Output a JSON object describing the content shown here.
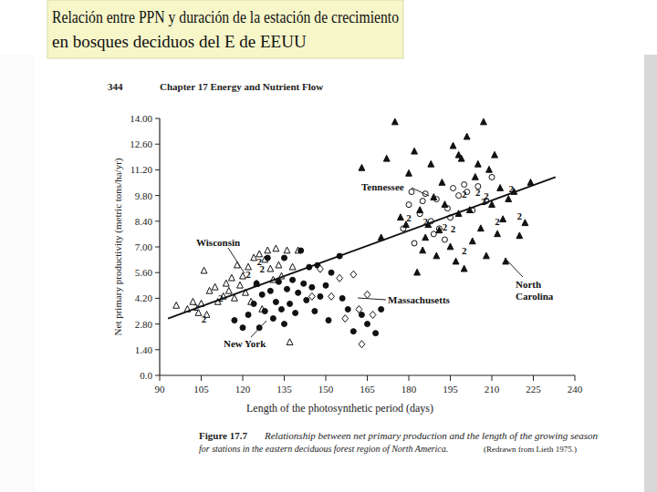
{
  "chart_data": {
    "type": "scatter",
    "title": "Relación entre PPN y duración de la estación de crecimiento",
    "subtitle": "en bosques deciduos del E de EEUU",
    "page_number": "344",
    "page_header": "Chapter 17  Energy and Nutrient Flow",
    "x_label": "Length of the photosynthetic period (days)",
    "y_label": "Net primary productivity (metric tons/ha/yr)",
    "caption_label": "Figure 17.7",
    "caption_lines": [
      "Relationship between net primary production and the length of the growing season",
      "for stations in the eastern deciduous forest region of North America.",
      "(Redrawn from Lieth 1975.)"
    ],
    "xlim": [
      90,
      240
    ],
    "xticks": [
      90,
      105,
      120,
      135,
      150,
      165,
      180,
      195,
      210,
      225,
      240
    ],
    "ylim": [
      0,
      14
    ],
    "yticks": [
      {
        "value": 0,
        "label": "0.0"
      },
      {
        "value": 1.4,
        "label": "1.40"
      },
      {
        "value": 2.8,
        "label": "2.80"
      },
      {
        "value": 4.2,
        "label": "4.20"
      },
      {
        "value": 5.6,
        "label": "5.60"
      },
      {
        "value": 7,
        "label": "7.00"
      },
      {
        "value": 8.4,
        "label": "8.40"
      },
      {
        "value": 9.8,
        "label": "9.80"
      },
      {
        "value": 11.2,
        "label": "11.20"
      },
      {
        "value": 12.6,
        "label": "12.60"
      },
      {
        "value": 14,
        "label": "14.00"
      }
    ],
    "grid": false,
    "series": [
      {
        "name": "Wisconsin",
        "color": "#111111",
        "marker": "triangle-open",
        "x": [
          96,
          100,
          102,
          104,
          105,
          106,
          107,
          108,
          110,
          111,
          113,
          114,
          115,
          116,
          117,
          118,
          119,
          120,
          121,
          122,
          123,
          124,
          125,
          126,
          128,
          129,
          130,
          131,
          132,
          133,
          134,
          136,
          138,
          140,
          137,
          127
        ],
        "values": [
          3.8,
          3.6,
          4.0,
          3.4,
          3.9,
          5.7,
          3.3,
          4.6,
          4.8,
          4.0,
          4.3,
          5.0,
          4.6,
          5.3,
          4.2,
          6.0,
          4.9,
          5.4,
          4.5,
          5.9,
          4.0,
          6.4,
          5.0,
          6.6,
          6.3,
          6.8,
          5.8,
          5.2,
          6.9,
          6.0,
          5.4,
          6.8,
          5.9,
          6.8,
          1.8,
          3.6
        ]
      },
      {
        "name": "New York",
        "color": "#111111",
        "marker": "circle",
        "x": [
          117,
          120,
          122,
          124,
          126,
          127,
          128,
          130,
          131,
          132,
          133,
          134,
          135,
          136,
          137,
          138,
          139,
          140,
          141,
          142,
          143,
          144,
          145,
          146,
          147,
          148,
          150,
          151,
          152,
          155,
          156,
          158,
          160,
          163,
          165,
          168,
          170,
          129,
          135,
          125
        ],
        "values": [
          3.0,
          2.6,
          3.3,
          3.9,
          2.6,
          4.4,
          3.5,
          4.6,
          3.1,
          4.0,
          5.1,
          3.6,
          2.8,
          4.7,
          3.9,
          5.2,
          3.4,
          4.5,
          6.8,
          5.0,
          4.1,
          5.9,
          4.8,
          3.5,
          6.0,
          4.3,
          4.9,
          3.0,
          5.6,
          6.5,
          4.2,
          3.6,
          2.4,
          3.3,
          2.8,
          2.3,
          3.6,
          6.4,
          6.4,
          5.0
        ]
      },
      {
        "name": "Massachusetts",
        "color": "#111111",
        "marker": "diamond-open",
        "x": [
          148,
          152,
          155,
          157,
          160,
          162,
          163,
          165,
          167,
          145
        ],
        "values": [
          5.8,
          4.3,
          5.3,
          3.1,
          5.5,
          3.6,
          1.7,
          4.4,
          3.3,
          4.3
        ]
      },
      {
        "name": "Tennessee",
        "color": "#111111",
        "marker": "circle-open",
        "x": [
          178,
          180,
          181,
          182,
          184,
          185,
          188,
          189,
          190,
          191,
          193,
          195,
          196,
          198,
          200,
          201,
          203,
          205,
          208,
          210,
          186,
          194
        ],
        "values": [
          8.0,
          9.3,
          10.0,
          7.2,
          8.8,
          9.5,
          8.4,
          7.7,
          9.6,
          8.0,
          7.4,
          8.6,
          10.2,
          9.8,
          10.4,
          10.0,
          9.0,
          10.3,
          9.5,
          10.8,
          9.9,
          9.1
        ]
      },
      {
        "name": "North Carolina",
        "color": "#111111",
        "marker": "triangle",
        "x": [
          163,
          170,
          172,
          175,
          177,
          179,
          180,
          182,
          184,
          185,
          186,
          187,
          188,
          189,
          190,
          191,
          192,
          193,
          195,
          196,
          197,
          198,
          199,
          200,
          201,
          202,
          203,
          204,
          205,
          206,
          207,
          208,
          209,
          210,
          211,
          212,
          213,
          214,
          215,
          216,
          218,
          220,
          222,
          224,
          183,
          198
        ],
        "values": [
          11.3,
          7.5,
          11.8,
          13.8,
          8.6,
          8.2,
          11.0,
          12.2,
          9.0,
          6.8,
          7.5,
          8.2,
          11.5,
          9.7,
          6.5,
          7.9,
          10.5,
          9.3,
          7.0,
          12.5,
          6.2,
          8.8,
          11.8,
          5.8,
          13.0,
          9.0,
          7.3,
          10.8,
          11.5,
          8.0,
          13.8,
          6.5,
          11.2,
          9.3,
          12.0,
          7.7,
          10.2,
          8.5,
          6.2,
          9.6,
          10.0,
          7.6,
          8.3,
          10.5,
          5.6,
          12.0
        ]
      },
      {
        "type": "line",
        "color": "#111111",
        "line_style": "solid",
        "x": [
          93,
          233
        ],
        "values": [
          3.1,
          10.8
        ]
      }
    ],
    "annotations": [
      {
        "text": "2",
        "x": 103,
        "y": 3.7
      },
      {
        "text": "2",
        "x": 106,
        "y": 3.1
      },
      {
        "text": "2",
        "x": 112,
        "y": 4.2
      },
      {
        "text": "2",
        "x": 122,
        "y": 5.5
      },
      {
        "text": "2",
        "x": 125,
        "y": 5.0
      },
      {
        "text": "2",
        "x": 126,
        "y": 6.2
      },
      {
        "text": "2",
        "x": 127,
        "y": 5.8
      },
      {
        "text": "2",
        "x": 180,
        "y": 8.6
      },
      {
        "text": "2",
        "x": 186,
        "y": 8.4
      },
      {
        "text": "2",
        "x": 193,
        "y": 8.1
      },
      {
        "text": "2",
        "x": 196,
        "y": 8.0
      },
      {
        "text": "2",
        "x": 200,
        "y": 6.8
      },
      {
        "text": "2",
        "x": 205,
        "y": 10.0
      },
      {
        "text": "2",
        "x": 208,
        "y": 9.8
      },
      {
        "text": "2",
        "x": 212,
        "y": 8.4
      },
      {
        "text": "2",
        "x": 217,
        "y": 10.2
      },
      {
        "text": "2",
        "x": 220,
        "y": 8.7
      },
      {
        "text": "2",
        "x": 200,
        "y": 9.9
      },
      {
        "text": "2",
        "x": 207,
        "y": 9.5
      }
    ]
  }
}
